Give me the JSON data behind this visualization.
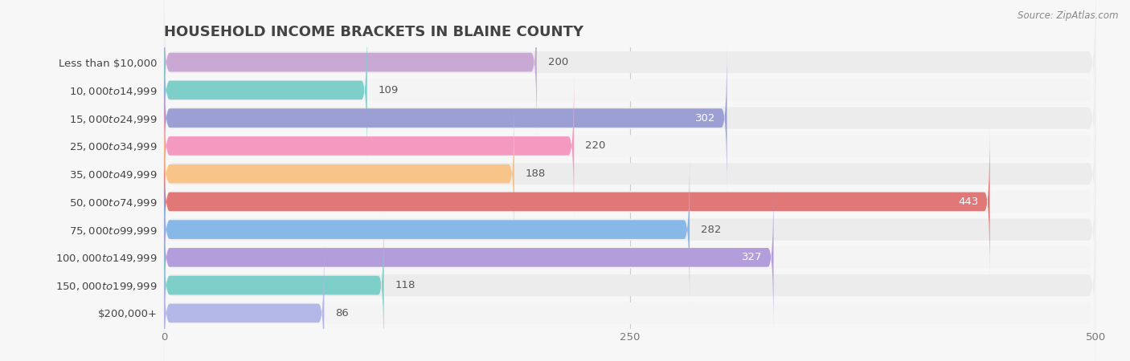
{
  "title": "Household Income Brackets in Blaine County",
  "source": "Source: ZipAtlas.com",
  "categories": [
    "Less than $10,000",
    "$10,000 to $14,999",
    "$15,000 to $24,999",
    "$25,000 to $34,999",
    "$35,000 to $49,999",
    "$50,000 to $74,999",
    "$75,000 to $99,999",
    "$100,000 to $149,999",
    "$150,000 to $199,999",
    "$200,000+"
  ],
  "values": [
    200,
    109,
    302,
    220,
    188,
    443,
    282,
    327,
    118,
    86
  ],
  "bar_colors": [
    "#c9a8d4",
    "#7ecfca",
    "#9b9fd4",
    "#f49ac1",
    "#f8c48a",
    "#e07878",
    "#88b8e8",
    "#b39ddb",
    "#7ecfca",
    "#b3b8e8"
  ],
  "value_inside": [
    false,
    false,
    true,
    false,
    false,
    true,
    false,
    true,
    false,
    false
  ],
  "xlim": [
    0,
    500
  ],
  "xticks": [
    0,
    250,
    500
  ],
  "background_color": "#f7f7f7",
  "bar_bg_color": "#e8e8e8",
  "row_bg_color": "#f0f0f0",
  "title_fontsize": 13,
  "label_fontsize": 9.5,
  "value_fontsize": 9.5,
  "tick_fontsize": 9.5
}
